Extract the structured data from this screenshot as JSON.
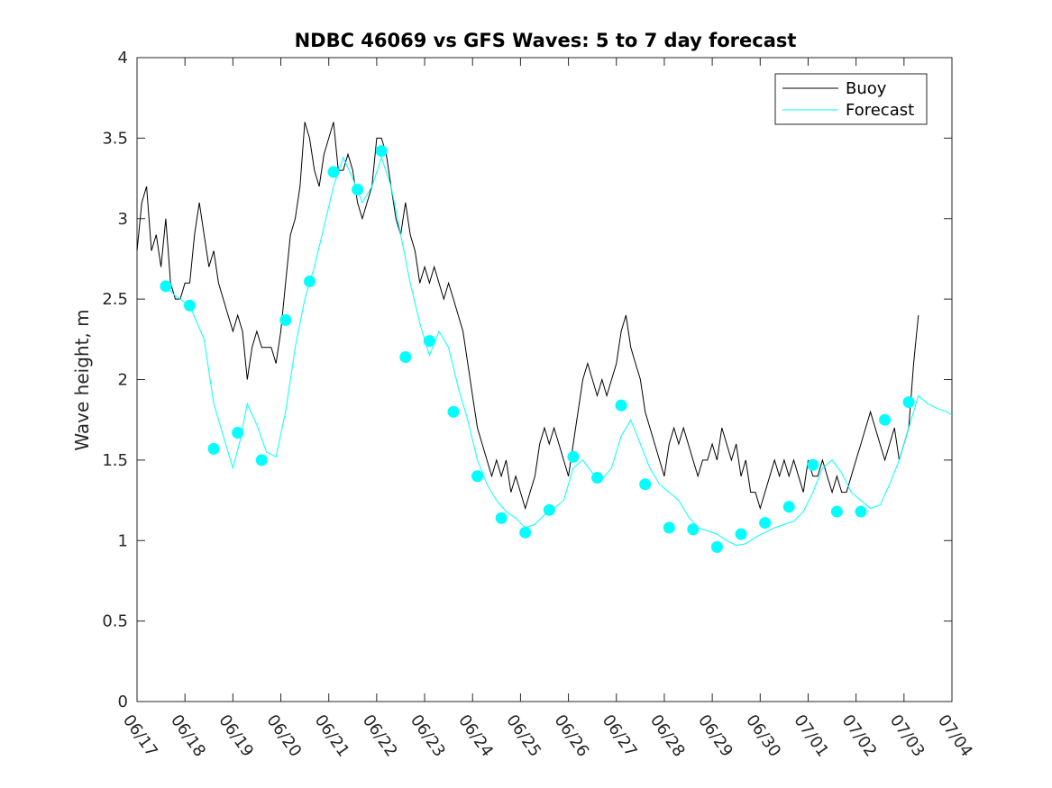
{
  "chart_data": {
    "type": "line",
    "title": "NDBC 46069 vs GFS Waves: 5 to 7 day forecast",
    "xlabel": "",
    "ylabel": "Wave height, m",
    "x_tick_labels": [
      "06/17",
      "06/18",
      "06/19",
      "06/20",
      "06/21",
      "06/22",
      "06/23",
      "06/24",
      "06/25",
      "06/26",
      "06/27",
      "06/28",
      "06/29",
      "06/30",
      "07/01",
      "07/02",
      "07/03",
      "07/04"
    ],
    "xlim_days": [
      0,
      17
    ],
    "ylim": [
      0,
      4
    ],
    "y_ticks": [
      0,
      0.5,
      1,
      1.5,
      2,
      2.5,
      3,
      3.5,
      4
    ],
    "y_tick_labels": [
      "0",
      "0.5",
      "1",
      "1.5",
      "2",
      "2.5",
      "3",
      "3.5",
      "4"
    ],
    "grid": false,
    "legend": {
      "position": "top-right",
      "entries": [
        "Buoy",
        "Forecast"
      ]
    },
    "colors": {
      "buoy": "#000000",
      "forecast": "#00ffff"
    },
    "series": [
      {
        "name": "Buoy",
        "style": "line",
        "points": [
          [
            0.0,
            2.8
          ],
          [
            0.1,
            3.1
          ],
          [
            0.2,
            3.2
          ],
          [
            0.3,
            2.8
          ],
          [
            0.4,
            2.9
          ],
          [
            0.5,
            2.7
          ],
          [
            0.6,
            3.0
          ],
          [
            0.65,
            2.8
          ],
          [
            0.7,
            2.6
          ],
          [
            0.8,
            2.5
          ],
          [
            0.9,
            2.5
          ],
          [
            1.0,
            2.6
          ],
          [
            1.1,
            2.6
          ],
          [
            1.2,
            2.9
          ],
          [
            1.3,
            3.1
          ],
          [
            1.4,
            2.9
          ],
          [
            1.5,
            2.7
          ],
          [
            1.6,
            2.8
          ],
          [
            1.7,
            2.6
          ],
          [
            1.8,
            2.5
          ],
          [
            1.9,
            2.4
          ],
          [
            2.0,
            2.3
          ],
          [
            2.1,
            2.4
          ],
          [
            2.2,
            2.3
          ],
          [
            2.3,
            2.0
          ],
          [
            2.4,
            2.2
          ],
          [
            2.5,
            2.3
          ],
          [
            2.6,
            2.2
          ],
          [
            2.7,
            2.2
          ],
          [
            2.8,
            2.2
          ],
          [
            2.9,
            2.1
          ],
          [
            3.0,
            2.3
          ],
          [
            3.1,
            2.6
          ],
          [
            3.2,
            2.9
          ],
          [
            3.3,
            3.0
          ],
          [
            3.4,
            3.2
          ],
          [
            3.5,
            3.6
          ],
          [
            3.6,
            3.5
          ],
          [
            3.7,
            3.3
          ],
          [
            3.8,
            3.2
          ],
          [
            3.9,
            3.4
          ],
          [
            4.0,
            3.5
          ],
          [
            4.1,
            3.6
          ],
          [
            4.2,
            3.3
          ],
          [
            4.3,
            3.3
          ],
          [
            4.4,
            3.4
          ],
          [
            4.5,
            3.3
          ],
          [
            4.6,
            3.1
          ],
          [
            4.7,
            3.0
          ],
          [
            4.8,
            3.1
          ],
          [
            4.9,
            3.2
          ],
          [
            5.0,
            3.5
          ],
          [
            5.1,
            3.5
          ],
          [
            5.2,
            3.4
          ],
          [
            5.3,
            3.2
          ],
          [
            5.4,
            3.0
          ],
          [
            5.5,
            2.9
          ],
          [
            5.6,
            3.1
          ],
          [
            5.7,
            2.9
          ],
          [
            5.8,
            2.8
          ],
          [
            5.9,
            2.6
          ],
          [
            6.0,
            2.7
          ],
          [
            6.1,
            2.6
          ],
          [
            6.2,
            2.7
          ],
          [
            6.3,
            2.6
          ],
          [
            6.4,
            2.5
          ],
          [
            6.5,
            2.6
          ],
          [
            6.6,
            2.5
          ],
          [
            6.7,
            2.4
          ],
          [
            6.8,
            2.3
          ],
          [
            6.9,
            2.1
          ],
          [
            7.0,
            1.9
          ],
          [
            7.1,
            1.7
          ],
          [
            7.2,
            1.6
          ],
          [
            7.3,
            1.5
          ],
          [
            7.4,
            1.4
          ],
          [
            7.5,
            1.5
          ],
          [
            7.6,
            1.4
          ],
          [
            7.7,
            1.5
          ],
          [
            7.8,
            1.3
          ],
          [
            7.9,
            1.4
          ],
          [
            8.0,
            1.3
          ],
          [
            8.1,
            1.2
          ],
          [
            8.2,
            1.3
          ],
          [
            8.3,
            1.4
          ],
          [
            8.4,
            1.6
          ],
          [
            8.5,
            1.7
          ],
          [
            8.6,
            1.6
          ],
          [
            8.7,
            1.7
          ],
          [
            8.8,
            1.6
          ],
          [
            8.9,
            1.5
          ],
          [
            9.0,
            1.4
          ],
          [
            9.1,
            1.6
          ],
          [
            9.2,
            1.8
          ],
          [
            9.3,
            2.0
          ],
          [
            9.4,
            2.1
          ],
          [
            9.5,
            2.0
          ],
          [
            9.6,
            1.9
          ],
          [
            9.7,
            2.0
          ],
          [
            9.8,
            1.9
          ],
          [
            9.9,
            2.0
          ],
          [
            10.0,
            2.1
          ],
          [
            10.1,
            2.3
          ],
          [
            10.2,
            2.4
          ],
          [
            10.3,
            2.2
          ],
          [
            10.4,
            2.1
          ],
          [
            10.5,
            2.0
          ],
          [
            10.6,
            1.8
          ],
          [
            10.7,
            1.7
          ],
          [
            10.8,
            1.6
          ],
          [
            10.9,
            1.5
          ],
          [
            11.0,
            1.4
          ],
          [
            11.1,
            1.6
          ],
          [
            11.2,
            1.7
          ],
          [
            11.3,
            1.6
          ],
          [
            11.4,
            1.7
          ],
          [
            11.5,
            1.6
          ],
          [
            11.6,
            1.5
          ],
          [
            11.7,
            1.4
          ],
          [
            11.8,
            1.5
          ],
          [
            11.9,
            1.5
          ],
          [
            12.0,
            1.6
          ],
          [
            12.1,
            1.5
          ],
          [
            12.2,
            1.7
          ],
          [
            12.3,
            1.6
          ],
          [
            12.4,
            1.5
          ],
          [
            12.5,
            1.6
          ],
          [
            12.6,
            1.4
          ],
          [
            12.7,
            1.5
          ],
          [
            12.8,
            1.3
          ],
          [
            12.9,
            1.3
          ],
          [
            13.0,
            1.2
          ],
          [
            13.1,
            1.3
          ],
          [
            13.2,
            1.4
          ],
          [
            13.3,
            1.5
          ],
          [
            13.4,
            1.4
          ],
          [
            13.5,
            1.5
          ],
          [
            13.6,
            1.4
          ],
          [
            13.7,
            1.5
          ],
          [
            13.8,
            1.4
          ],
          [
            13.9,
            1.3
          ],
          [
            14.0,
            1.5
          ],
          [
            14.1,
            1.4
          ],
          [
            14.2,
            1.4
          ],
          [
            14.3,
            1.5
          ],
          [
            14.4,
            1.4
          ],
          [
            14.5,
            1.3
          ],
          [
            14.6,
            1.4
          ],
          [
            14.7,
            1.3
          ],
          [
            14.8,
            1.3
          ],
          [
            14.9,
            1.4
          ],
          [
            15.0,
            1.5
          ],
          [
            15.1,
            1.6
          ],
          [
            15.2,
            1.7
          ],
          [
            15.3,
            1.8
          ],
          [
            15.4,
            1.7
          ],
          [
            15.5,
            1.6
          ],
          [
            15.6,
            1.5
          ],
          [
            15.7,
            1.6
          ],
          [
            15.8,
            1.7
          ],
          [
            15.9,
            1.5
          ],
          [
            16.0,
            1.6
          ],
          [
            16.1,
            1.7
          ],
          [
            16.2,
            2.1
          ],
          [
            16.3,
            2.4
          ]
        ]
      },
      {
        "name": "Forecast",
        "style": "line",
        "points": [
          [
            0.6,
            2.58
          ],
          [
            0.8,
            2.52
          ],
          [
            1.1,
            2.46
          ],
          [
            1.4,
            2.25
          ],
          [
            1.6,
            1.85
          ],
          [
            1.85,
            1.6
          ],
          [
            2.0,
            1.45
          ],
          [
            2.15,
            1.62
          ],
          [
            2.3,
            1.85
          ],
          [
            2.5,
            1.72
          ],
          [
            2.7,
            1.55
          ],
          [
            2.9,
            1.52
          ],
          [
            3.1,
            1.8
          ],
          [
            3.3,
            2.2
          ],
          [
            3.5,
            2.5
          ],
          [
            3.7,
            2.7
          ],
          [
            3.9,
            2.95
          ],
          [
            4.1,
            3.2
          ],
          [
            4.3,
            3.38
          ],
          [
            4.5,
            3.25
          ],
          [
            4.7,
            3.1
          ],
          [
            4.9,
            3.2
          ],
          [
            5.1,
            3.38
          ],
          [
            5.3,
            3.2
          ],
          [
            5.5,
            2.9
          ],
          [
            5.7,
            2.6
          ],
          [
            5.9,
            2.35
          ],
          [
            6.1,
            2.15
          ],
          [
            6.3,
            2.3
          ],
          [
            6.5,
            2.2
          ],
          [
            6.7,
            1.95
          ],
          [
            6.9,
            1.75
          ],
          [
            7.1,
            1.5
          ],
          [
            7.3,
            1.35
          ],
          [
            7.5,
            1.25
          ],
          [
            7.7,
            1.18
          ],
          [
            7.9,
            1.14
          ],
          [
            8.1,
            1.08
          ],
          [
            8.3,
            1.1
          ],
          [
            8.5,
            1.16
          ],
          [
            8.7,
            1.2
          ],
          [
            8.9,
            1.25
          ],
          [
            9.1,
            1.45
          ],
          [
            9.3,
            1.5
          ],
          [
            9.5,
            1.42
          ],
          [
            9.7,
            1.38
          ],
          [
            9.9,
            1.45
          ],
          [
            10.1,
            1.65
          ],
          [
            10.3,
            1.75
          ],
          [
            10.5,
            1.6
          ],
          [
            10.7,
            1.45
          ],
          [
            10.9,
            1.35
          ],
          [
            11.1,
            1.3
          ],
          [
            11.3,
            1.25
          ],
          [
            11.5,
            1.15
          ],
          [
            11.7,
            1.08
          ],
          [
            11.9,
            1.06
          ],
          [
            12.1,
            1.04
          ],
          [
            12.3,
            1.0
          ],
          [
            12.5,
            0.97
          ],
          [
            12.7,
            0.98
          ],
          [
            12.9,
            1.02
          ],
          [
            13.1,
            1.05
          ],
          [
            13.3,
            1.08
          ],
          [
            13.5,
            1.1
          ],
          [
            13.7,
            1.12
          ],
          [
            13.9,
            1.18
          ],
          [
            14.1,
            1.3
          ],
          [
            14.3,
            1.45
          ],
          [
            14.5,
            1.5
          ],
          [
            14.7,
            1.42
          ],
          [
            14.9,
            1.3
          ],
          [
            15.1,
            1.25
          ],
          [
            15.3,
            1.2
          ],
          [
            15.5,
            1.22
          ],
          [
            15.7,
            1.35
          ],
          [
            15.9,
            1.5
          ],
          [
            16.1,
            1.7
          ],
          [
            16.3,
            1.9
          ],
          [
            16.5,
            1.85
          ],
          [
            16.7,
            1.82
          ],
          [
            16.9,
            1.8
          ],
          [
            17.0,
            1.78
          ]
        ]
      }
    ],
    "forecast_markers": [
      [
        0.6,
        2.58
      ],
      [
        1.1,
        2.46
      ],
      [
        1.6,
        1.57
      ],
      [
        2.1,
        1.67
      ],
      [
        2.6,
        1.5
      ],
      [
        3.1,
        2.37
      ],
      [
        3.6,
        2.61
      ],
      [
        4.1,
        3.29
      ],
      [
        4.6,
        3.18
      ],
      [
        5.1,
        3.42
      ],
      [
        5.6,
        2.14
      ],
      [
        6.1,
        2.24
      ],
      [
        6.6,
        1.8
      ],
      [
        7.1,
        1.4
      ],
      [
        7.6,
        1.14
      ],
      [
        8.1,
        1.05
      ],
      [
        8.6,
        1.19
      ],
      [
        9.1,
        1.52
      ],
      [
        9.6,
        1.39
      ],
      [
        10.1,
        1.84
      ],
      [
        10.6,
        1.35
      ],
      [
        11.1,
        1.08
      ],
      [
        11.6,
        1.07
      ],
      [
        12.1,
        0.96
      ],
      [
        12.6,
        1.04
      ],
      [
        13.1,
        1.11
      ],
      [
        13.6,
        1.21
      ],
      [
        14.1,
        1.47
      ],
      [
        14.6,
        1.18
      ],
      [
        15.1,
        1.18
      ],
      [
        15.6,
        1.75
      ],
      [
        16.1,
        1.86
      ]
    ]
  }
}
